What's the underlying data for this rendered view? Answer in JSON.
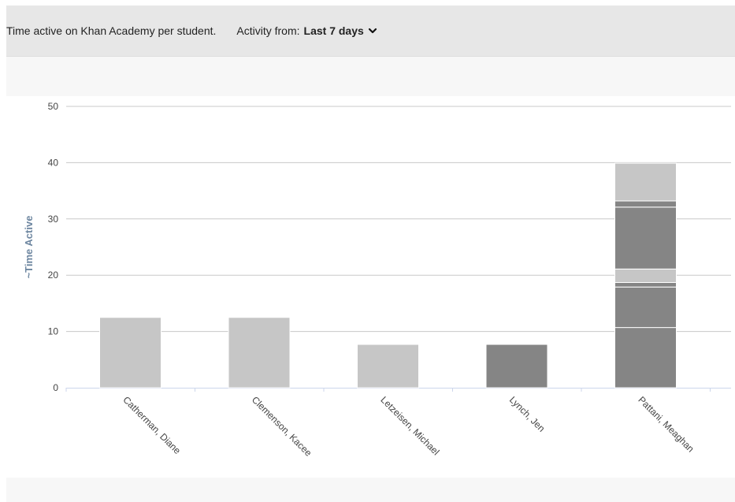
{
  "header": {
    "description": "Time active on Khan Academy per student.",
    "filter_label": "Activity from:",
    "filter_value": "Last 7 days",
    "filter_icon": "chevron-down-icon"
  },
  "colors": {
    "light_segment": "#c6c6c6",
    "dark_segment": "#858585",
    "grid": "#c8c8c8",
    "axis": "#ccd6eb",
    "ylabel": "#6d86a0",
    "tick_label": "#444444"
  },
  "chart_data": {
    "type": "bar",
    "stacked": true,
    "ylabel": "~Time Active",
    "xlabel": "",
    "ylim": [
      0,
      50
    ],
    "yticks": [
      0,
      10,
      20,
      30,
      40,
      50
    ],
    "grid": true,
    "legend": "none",
    "categories": [
      "Catherman, Diane",
      "Clemenson, Kacee",
      "Letzeisen, Michael",
      "Lynch, Jen",
      "Pattani, Meaghan"
    ],
    "stacks": [
      [
        {
          "value": 12.5,
          "shade": "light"
        }
      ],
      [
        {
          "value": 12.5,
          "shade": "light"
        }
      ],
      [
        {
          "value": 7.7,
          "shade": "light"
        }
      ],
      [
        {
          "value": 7.7,
          "shade": "dark"
        }
      ],
      [
        {
          "value": 10.7,
          "shade": "dark"
        },
        {
          "value": 7.2,
          "shade": "dark"
        },
        {
          "value": 0.8,
          "shade": "dark"
        },
        {
          "value": 2.4,
          "shade": "light"
        },
        {
          "value": 11.0,
          "shade": "dark"
        },
        {
          "value": 1.1,
          "shade": "dark"
        },
        {
          "value": 6.7,
          "shade": "light"
        }
      ]
    ]
  }
}
